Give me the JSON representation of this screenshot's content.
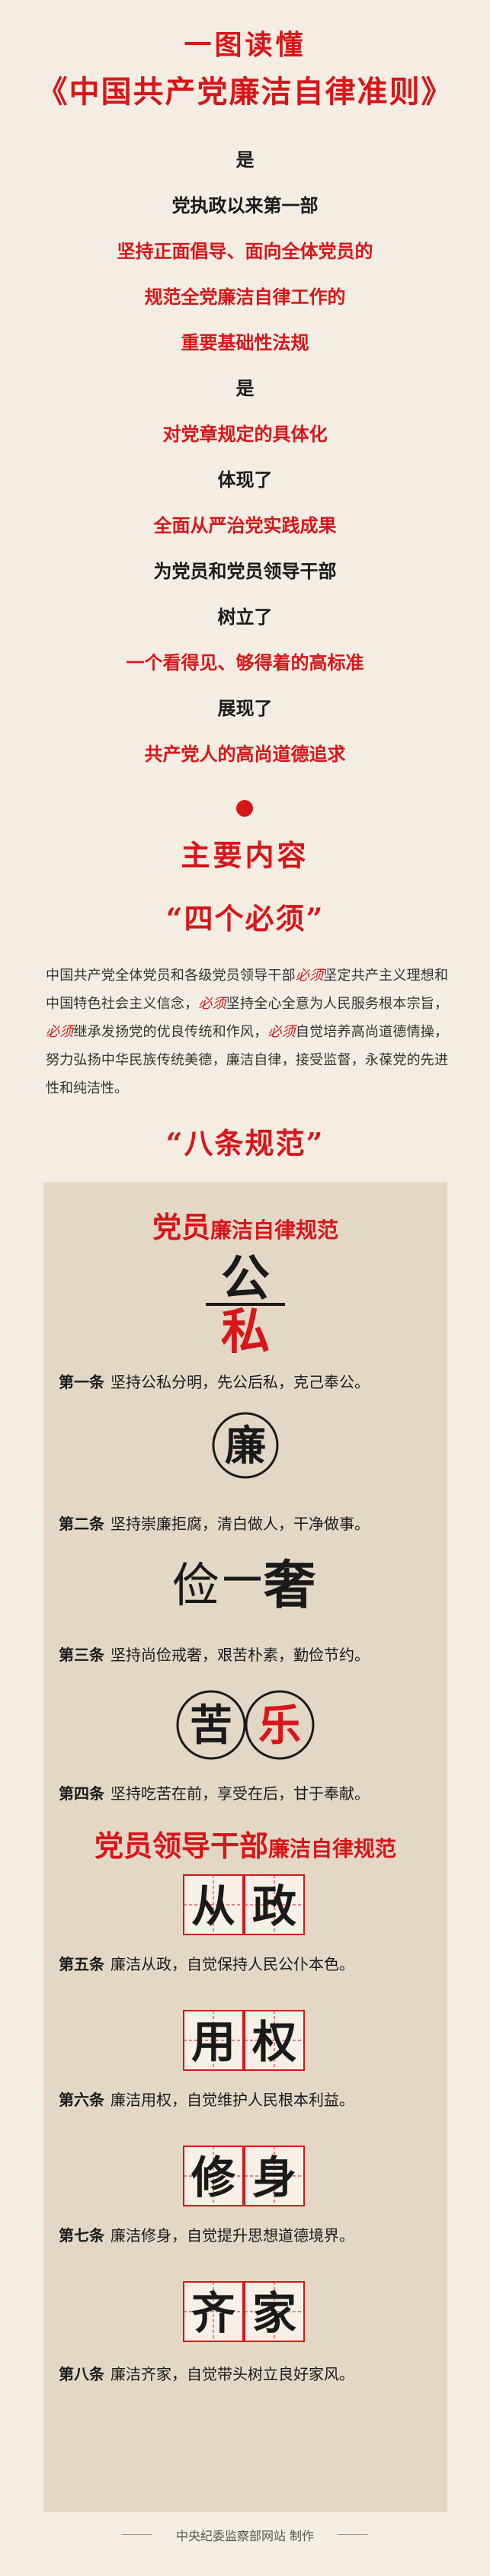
{
  "header": {
    "line1": "一图读懂",
    "line2": "《中国共产党廉洁自律准则》"
  },
  "intro_lines": [
    {
      "text": "是",
      "style": "black"
    },
    {
      "text": "党执政以来第一部",
      "style": "black"
    },
    {
      "text": "坚持正面倡导、面向全体党员的",
      "style": "red"
    },
    {
      "text": "规范全党廉洁自律工作的",
      "style": "red"
    },
    {
      "text": "重要基础性法规",
      "style": "red"
    },
    {
      "text": "是",
      "style": "black"
    },
    {
      "text": "对党章规定的具体化",
      "style": "red"
    },
    {
      "text": "体现了",
      "style": "black"
    },
    {
      "text": "全面从严治党实践成果",
      "style": "red"
    },
    {
      "text": "为党员和党员领导干部",
      "style": "black"
    },
    {
      "text": "树立了",
      "style": "black"
    },
    {
      "text": "一个看得见、够得着的高标准",
      "style": "red"
    },
    {
      "text": "展现了",
      "style": "black"
    },
    {
      "text": "共产党人的高尚道德追求",
      "style": "red"
    }
  ],
  "main_content_title": "主要内容",
  "four_musts": {
    "title": "“四个必须”",
    "segments": [
      {
        "t": "中国共产党全体党员和各级党员领导干部",
        "em": false
      },
      {
        "t": "必须",
        "em": true
      },
      {
        "t": "坚定共产主义理想和中国特色社会主义信念，",
        "em": false
      },
      {
        "t": "必须",
        "em": true
      },
      {
        "t": "坚持全心全意为人民服务根本宗旨，",
        "em": false
      },
      {
        "t": "必须",
        "em": true
      },
      {
        "t": "继承发扬党的优良传统和作风，",
        "em": false
      },
      {
        "t": "必须",
        "em": true
      },
      {
        "t": "自觉培养高尚道德情操，努力弘扬中华民族传统美德，廉洁自律，接受监督，永葆党的先进性和纯洁性。",
        "em": false
      }
    ]
  },
  "eight_rules": {
    "title": "“八条规范”",
    "members_section": {
      "title_big": "党员",
      "title_small": "廉洁自律规范"
    },
    "leaders_section": {
      "title_big": "党员领导干部",
      "title_small": "廉洁自律规范"
    },
    "rules": [
      {
        "num": "第一条",
        "text": "坚持公私分明，先公后私，克己奉公。",
        "art": [
          "公",
          "私"
        ]
      },
      {
        "num": "第二条",
        "text": "坚持崇廉拒腐，清白做人，干净做事。",
        "art": [
          "廉"
        ]
      },
      {
        "num": "第三条",
        "text": "坚持尚俭戒奢，艰苦朴素，勤俭节约。",
        "art": [
          "俭",
          "奢"
        ]
      },
      {
        "num": "第四条",
        "text": "坚持吃苦在前，享受在后，甘于奉献。",
        "art": [
          "苦",
          "乐"
        ]
      },
      {
        "num": "第五条",
        "text": "廉洁从政，自觉保持人民公仆本色。",
        "art": [
          "从",
          "政"
        ]
      },
      {
        "num": "第六条",
        "text": "廉洁用权，自觉维护人民根本利益。",
        "art": [
          "用",
          "权"
        ]
      },
      {
        "num": "第七条",
        "text": "廉洁修身，自觉提升思想道德境界。",
        "art": [
          "修",
          "身"
        ]
      },
      {
        "num": "第八条",
        "text": "廉洁齐家，自觉带头树立良好家风。",
        "art": [
          "齐",
          "家"
        ]
      }
    ]
  },
  "credit": "中央纪委监察部网站 制作",
  "colors": {
    "accent": "#d7161a",
    "background": "#f4ede3",
    "panel": "#e3d8c6"
  }
}
